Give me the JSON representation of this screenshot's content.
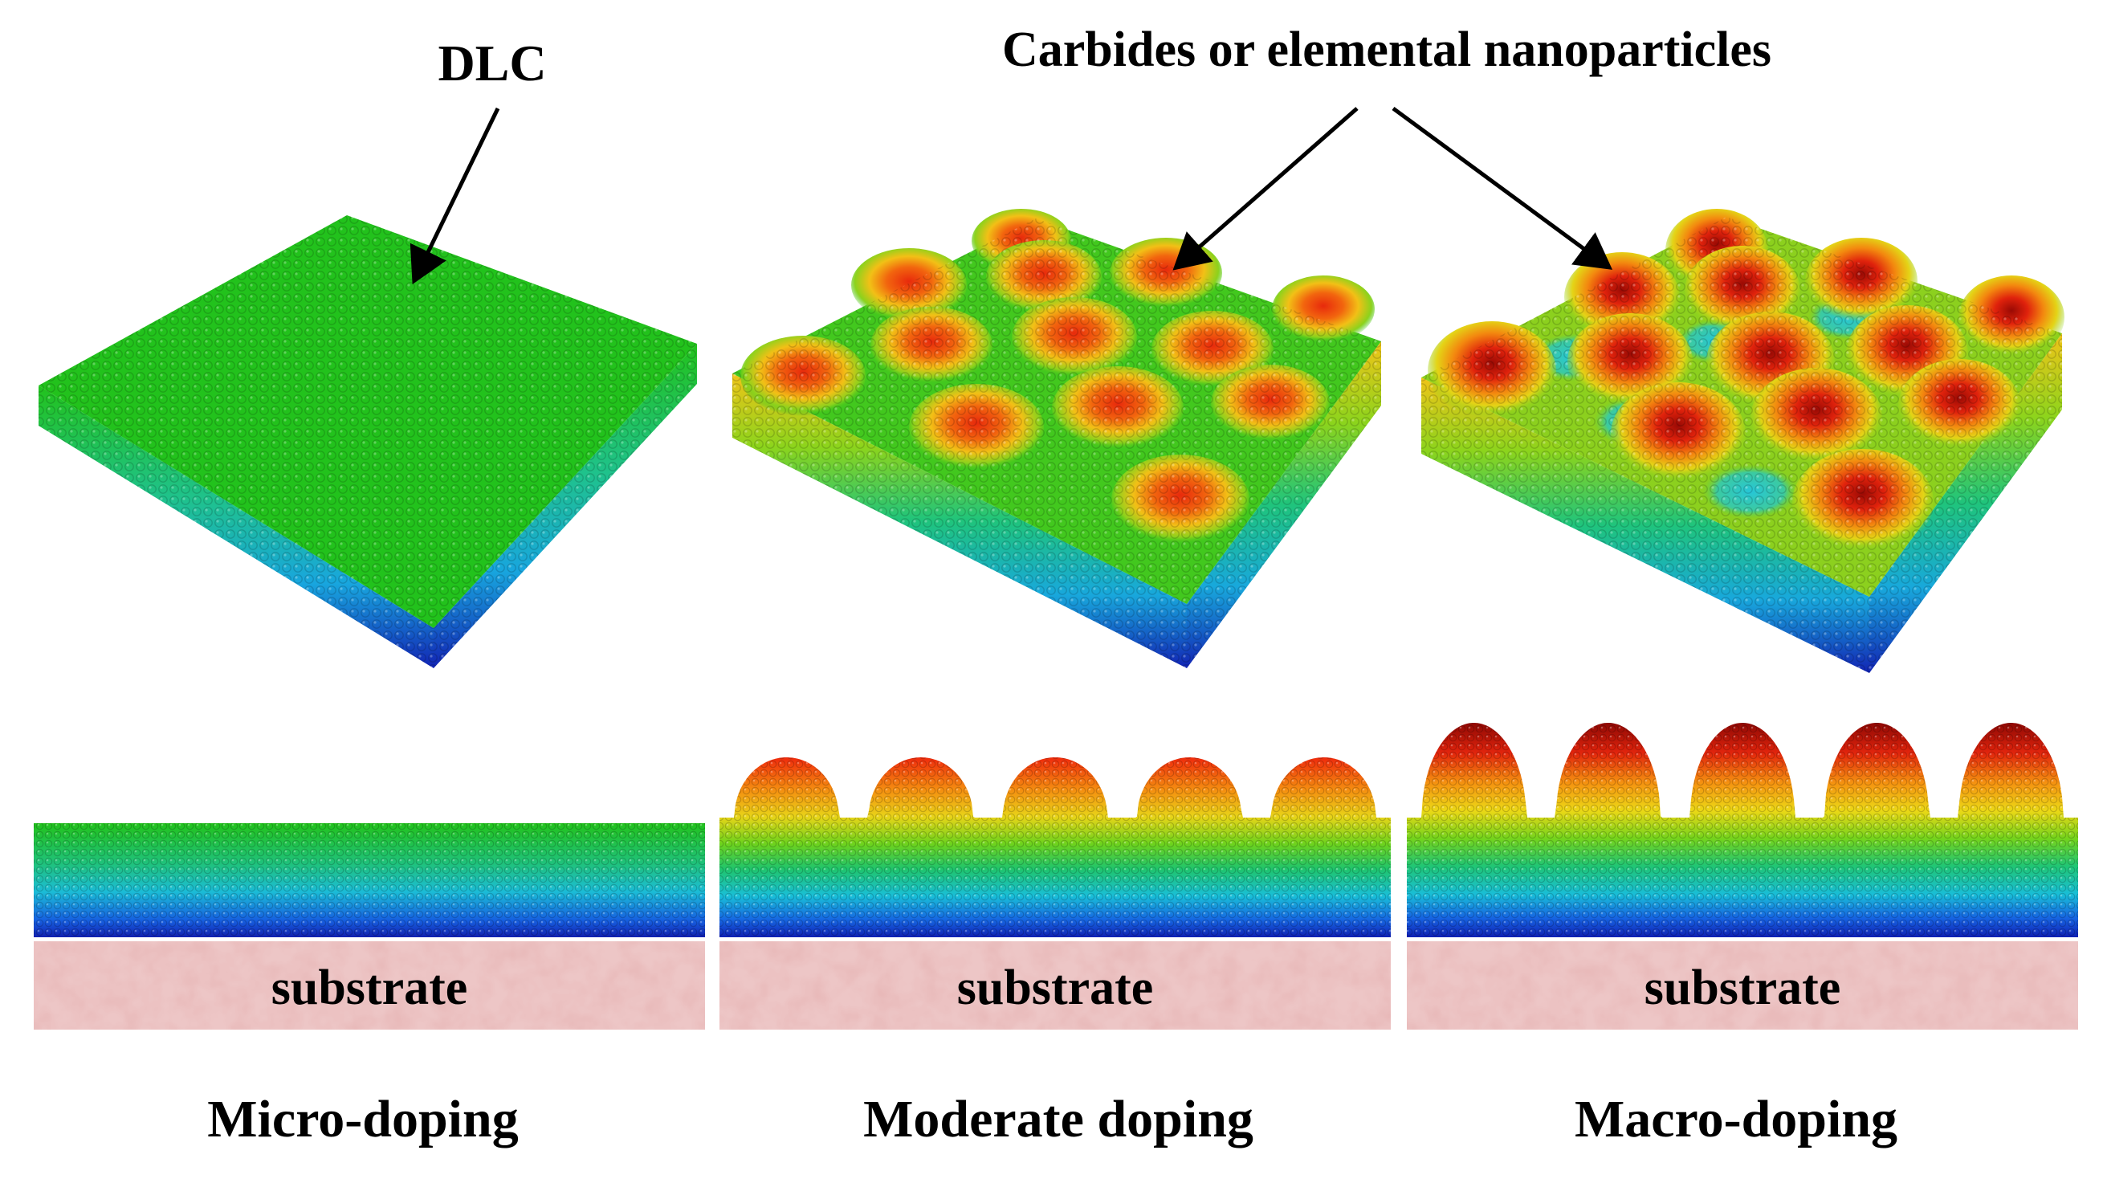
{
  "labels": {
    "dlc": "DLC",
    "nanoparticles": "Carbides or elemental nanoparticles"
  },
  "panels": [
    {
      "id": "micro",
      "substrate_label": "substrate",
      "caption": "Micro-doping",
      "bumps": false,
      "peak_color": "#20c21a",
      "valley_color": "#20c21a"
    },
    {
      "id": "moderate",
      "substrate_label": "substrate",
      "caption": "Moderate doping",
      "bumps": true,
      "peak_color": "#ef2a0c",
      "valley_color": "#30c620"
    },
    {
      "id": "macro",
      "substrate_label": "substrate",
      "caption": "Macro-doping",
      "bumps": true,
      "peak_color": "#a80a04",
      "valley_color": "#28c8d6"
    }
  ],
  "colors": {
    "film_gradient": [
      "#c81008",
      "#ef3a0c",
      "#f6a10e",
      "#ecd616",
      "#7ed81c",
      "#20c21a",
      "#1ec48a",
      "#18b8d8",
      "#1670e2",
      "#1020b4"
    ],
    "substrate": "#edc6c6",
    "arrow": "#000000"
  }
}
